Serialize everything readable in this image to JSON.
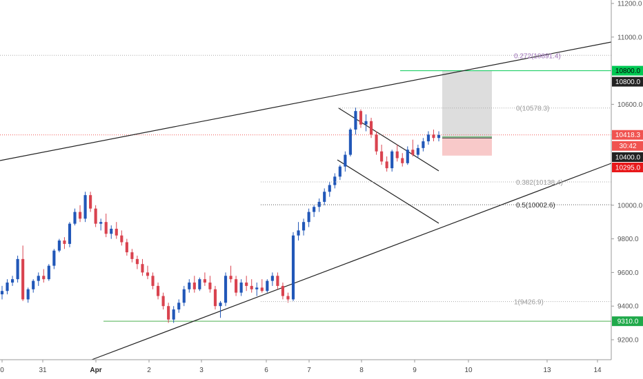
{
  "chart_data": {
    "type": "candlestick",
    "y_axis": {
      "ticks": [
        "11200.0",
        "11000.0",
        "10600.0",
        "10000.0",
        "9800.0",
        "9600.0",
        "9400.0",
        "9200.0"
      ],
      "ylim": [
        9100,
        11200
      ]
    },
    "x_axis": {
      "ticks": [
        {
          "label": "0",
          "bold": false
        },
        {
          "label": "31",
          "bold": false
        },
        {
          "label": "Apr",
          "bold": true
        },
        {
          "label": "2",
          "bold": false
        },
        {
          "label": "3",
          "bold": false
        },
        {
          "label": "6",
          "bold": false
        },
        {
          "label": "7",
          "bold": false
        },
        {
          "label": "8",
          "bold": false
        },
        {
          "label": "9",
          "bold": false
        },
        {
          "label": "10",
          "bold": false
        },
        {
          "label": "13",
          "bold": false
        },
        {
          "label": "14",
          "bold": false
        }
      ]
    },
    "fib_levels": [
      {
        "label": "0.272(10891.4)",
        "value": 10891.4,
        "style": "purple"
      },
      {
        "label": "0(10578.3)",
        "value": 10578.3,
        "style": "gray"
      },
      {
        "label": "0.382(10138.4)",
        "value": 10138.4,
        "style": "gray"
      },
      {
        "label": "0.5(10002.6)",
        "value": 10002.6,
        "style": "dark"
      },
      {
        "label": "1(9426.9)",
        "value": 9426.9,
        "style": "gray"
      }
    ],
    "price_badges": [
      {
        "text": "10800.0",
        "value": 10800.0,
        "color": "#00c853",
        "text_color": "#000000"
      },
      {
        "text": "10800.0",
        "value": 10800.0,
        "color": "#222222",
        "text_color": "#ffffff",
        "offset": 1
      },
      {
        "text": "10418.3",
        "value": 10418.3,
        "color": "#f05350",
        "text_color": "#ffffff"
      },
      {
        "text": "30:42",
        "value": 10418.3,
        "color": "#f05350",
        "text_color": "#ffffff",
        "offset": 1
      },
      {
        "text": "10400.0",
        "value": 10400.0,
        "color": "#222222",
        "text_color": "#ffffff",
        "offset": 2
      },
      {
        "text": "10295.0",
        "value": 10295.0,
        "color": "#e8191b",
        "text_color": "#ffffff",
        "offset": 3
      },
      {
        "text": "9310.0",
        "value": 9310.0,
        "color": "#1fa94a",
        "text_color": "#ffffff"
      }
    ],
    "horizontal_levels": [
      {
        "name": "support",
        "value": 9310.0,
        "color": "#4caf50"
      },
      {
        "name": "target",
        "value": 10800.0,
        "color": "#00c853"
      }
    ],
    "position": {
      "entry": 10400.0,
      "target": 10800.0,
      "stop": 10295.0
    },
    "current_price": 10418.3,
    "colors": {
      "up": "#2157b8",
      "down": "#d9434f",
      "grid": "#f0f0f0",
      "axis": "#999999",
      "trend": "#222222",
      "profit_zone": "#d9d9d9",
      "loss_zone": "#f7c3c3"
    },
    "candles": [
      [
        9470,
        9520,
        9440,
        9490
      ],
      [
        9490,
        9560,
        9470,
        9540
      ],
      [
        9540,
        9580,
        9520,
        9560
      ],
      [
        9560,
        9700,
        9540,
        9680
      ],
      [
        9680,
        9760,
        9430,
        9440
      ],
      [
        9440,
        9510,
        9420,
        9500
      ],
      [
        9500,
        9560,
        9480,
        9550
      ],
      [
        9550,
        9600,
        9520,
        9580
      ],
      [
        9580,
        9620,
        9540,
        9560
      ],
      [
        9560,
        9650,
        9550,
        9640
      ],
      [
        9640,
        9740,
        9620,
        9730
      ],
      [
        9730,
        9800,
        9720,
        9790
      ],
      [
        9790,
        9810,
        9740,
        9770
      ],
      [
        9770,
        9900,
        9750,
        9890
      ],
      [
        9890,
        9980,
        9880,
        9960
      ],
      [
        9960,
        10000,
        9900,
        9920
      ],
      [
        9920,
        10080,
        9900,
        10060
      ],
      [
        10060,
        10080,
        9960,
        9980
      ],
      [
        9980,
        10000,
        9870,
        9890
      ],
      [
        9890,
        9920,
        9850,
        9900
      ],
      [
        9900,
        9950,
        9810,
        9830
      ],
      [
        9830,
        9880,
        9800,
        9860
      ],
      [
        9860,
        9900,
        9800,
        9820
      ],
      [
        9820,
        9850,
        9760,
        9780
      ],
      [
        9780,
        9800,
        9700,
        9720
      ],
      [
        9720,
        9740,
        9660,
        9680
      ],
      [
        9680,
        9700,
        9620,
        9650
      ],
      [
        9650,
        9680,
        9580,
        9600
      ],
      [
        9600,
        9640,
        9560,
        9580
      ],
      [
        9580,
        9600,
        9500,
        9520
      ],
      [
        9520,
        9540,
        9440,
        9460
      ],
      [
        9460,
        9480,
        9380,
        9400
      ],
      [
        9400,
        9420,
        9300,
        9320
      ],
      [
        9320,
        9400,
        9300,
        9380
      ],
      [
        9380,
        9440,
        9360,
        9420
      ],
      [
        9420,
        9520,
        9400,
        9500
      ],
      [
        9500,
        9560,
        9480,
        9540
      ],
      [
        9540,
        9580,
        9480,
        9500
      ],
      [
        9500,
        9570,
        9490,
        9560
      ],
      [
        9560,
        9600,
        9520,
        9540
      ],
      [
        9540,
        9580,
        9480,
        9500
      ],
      [
        9500,
        9520,
        9380,
        9400
      ],
      [
        9400,
        9430,
        9330,
        9420
      ],
      [
        9420,
        9600,
        9400,
        9580
      ],
      [
        9580,
        9640,
        9540,
        9560
      ],
      [
        9560,
        9580,
        9460,
        9480
      ],
      [
        9480,
        9560,
        9460,
        9540
      ],
      [
        9540,
        9580,
        9490,
        9520
      ],
      [
        9520,
        9560,
        9480,
        9500
      ],
      [
        9500,
        9540,
        9460,
        9510
      ],
      [
        9510,
        9560,
        9480,
        9490
      ],
      [
        9490,
        9560,
        9480,
        9550
      ],
      [
        9550,
        9600,
        9520,
        9580
      ],
      [
        9580,
        9600,
        9500,
        9520
      ],
      [
        9520,
        9540,
        9440,
        9460
      ],
      [
        9460,
        9480,
        9420,
        9440
      ],
      [
        9440,
        9840,
        9430,
        9820
      ],
      [
        9820,
        9900,
        9790,
        9850
      ],
      [
        9850,
        9920,
        9820,
        9900
      ],
      [
        9900,
        9980,
        9870,
        9960
      ],
      [
        9960,
        10000,
        9930,
        9990
      ],
      [
        9990,
        10040,
        9960,
        10020
      ],
      [
        10020,
        10100,
        10000,
        10080
      ],
      [
        10080,
        10140,
        10050,
        10120
      ],
      [
        10120,
        10190,
        10100,
        10170
      ],
      [
        10170,
        10240,
        10150,
        10230
      ],
      [
        10230,
        10320,
        10200,
        10300
      ],
      [
        10300,
        10460,
        10290,
        10450
      ],
      [
        10450,
        10580,
        10420,
        10560
      ],
      [
        10560,
        10570,
        10460,
        10480
      ],
      [
        10480,
        10540,
        10440,
        10500
      ],
      [
        10500,
        10520,
        10400,
        10420
      ],
      [
        10420,
        10440,
        10300,
        10320
      ],
      [
        10320,
        10360,
        10240,
        10260
      ],
      [
        10260,
        10290,
        10200,
        10220
      ],
      [
        10220,
        10330,
        10200,
        10320
      ],
      [
        10320,
        10360,
        10260,
        10280
      ],
      [
        10280,
        10310,
        10230,
        10250
      ],
      [
        10250,
        10350,
        10240,
        10330
      ],
      [
        10330,
        10390,
        10290,
        10300
      ],
      [
        10300,
        10360,
        10280,
        10340
      ],
      [
        10340,
        10400,
        10320,
        10380
      ],
      [
        10380,
        10440,
        10360,
        10420
      ],
      [
        10420,
        10450,
        10380,
        10400
      ],
      [
        10400,
        10440,
        10380,
        10418
      ]
    ]
  }
}
